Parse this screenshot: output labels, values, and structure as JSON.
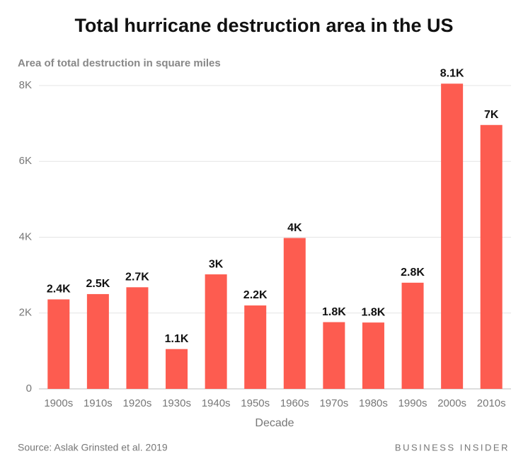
{
  "chart_data": {
    "type": "bar",
    "title": "Total hurricane destruction area in the US",
    "y_label": "Area of total destruction in square miles",
    "x_label": "Decade",
    "source": "Source: Aslak Grinsted et al. 2019",
    "brand": "BUSINESS INSIDER",
    "categories": [
      "1900s",
      "1910s",
      "1920s",
      "1930s",
      "1940s",
      "1950s",
      "1960s",
      "1970s",
      "1980s",
      "1990s",
      "2000s",
      "2010s"
    ],
    "values": [
      2360,
      2500,
      2680,
      1050,
      3020,
      2200,
      3980,
      1760,
      1750,
      2800,
      8050,
      6960
    ],
    "value_labels": [
      "2.4K",
      "2.5K",
      "2.7K",
      "1.1K",
      "3K",
      "2.2K",
      "4K",
      "1.8K",
      "1.8K",
      "2.8K",
      "8.1K",
      "7K"
    ],
    "color": "#fd5c50",
    "ylim": [
      0,
      8000
    ],
    "yticks": [
      0,
      {
        "value": 2000,
        "label": "2K"
      },
      {
        "value": 4000,
        "label": "4K"
      },
      {
        "value": 6000,
        "label": "6K"
      },
      {
        "value": 8000,
        "label": "8K"
      }
    ],
    "grid": true
  }
}
